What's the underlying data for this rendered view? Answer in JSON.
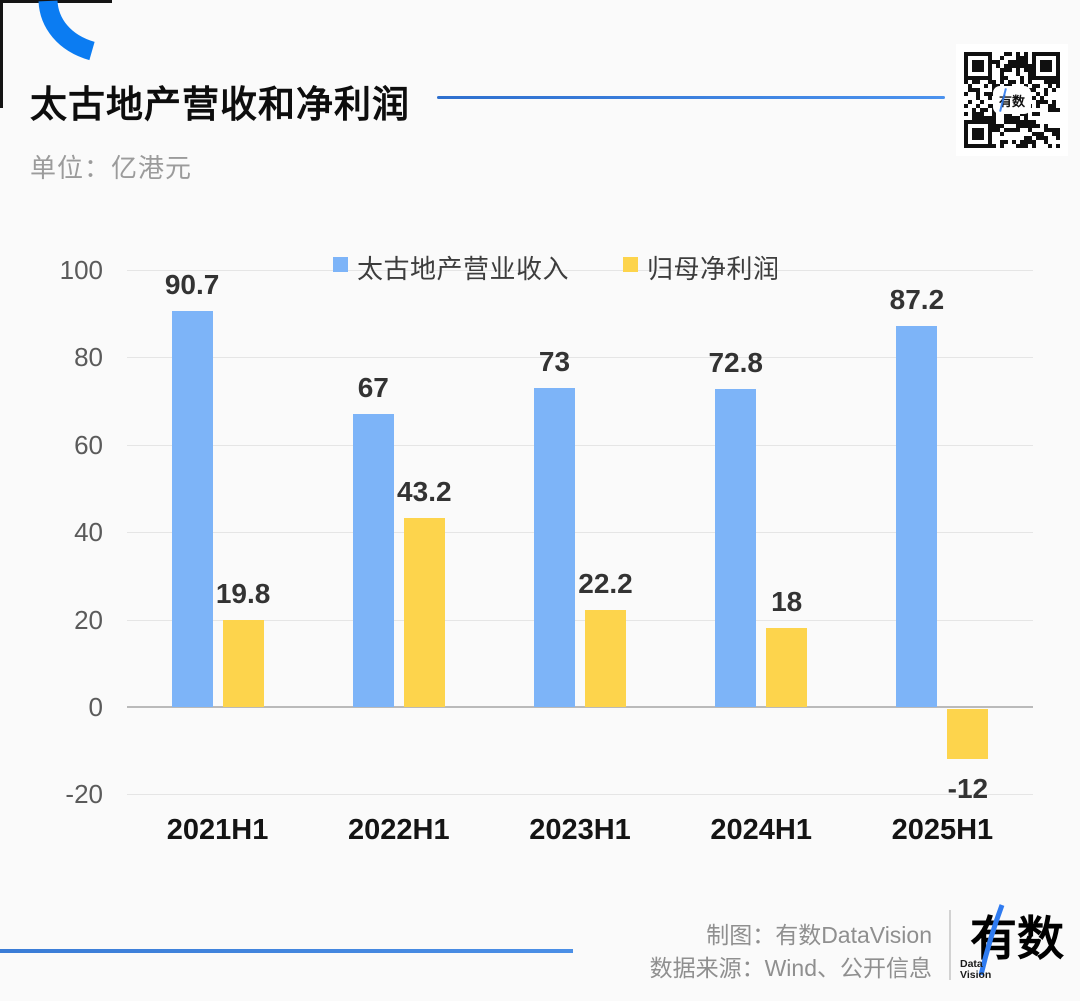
{
  "header": {
    "title": "太古地产营收和净利润",
    "unit_label": "单位：亿港元",
    "accent_color": "#3c7fe0",
    "arc_color": "#0b7cf2"
  },
  "qr": {
    "center_text": "有数"
  },
  "chart_data": {
    "type": "bar",
    "title": "太古地产营收和净利润",
    "unit": "亿港元",
    "categories": [
      "2021H1",
      "2022H1",
      "2023H1",
      "2024H1",
      "2025H1"
    ],
    "series": [
      {
        "name": "太古地产营业收入",
        "color": "#7db4f8",
        "values": [
          90.7,
          67,
          73,
          72.8,
          87.2
        ]
      },
      {
        "name": "归母净利润",
        "color": "#fdd44c",
        "values": [
          19.8,
          43.2,
          22.2,
          18,
          -12
        ]
      }
    ],
    "y_ticks": [
      100,
      80,
      60,
      40,
      20,
      0,
      -20
    ],
    "ylim": [
      -20,
      100
    ],
    "grid": true,
    "legend_position": "top"
  },
  "legend": {
    "item1": "太古地产营业收入",
    "item2": "归母净利润"
  },
  "footer": {
    "maker": "制图：有数DataVision",
    "source": "数据来源：Wind、公开信息",
    "logo_text": "有数",
    "logo_sub_line1": "Data",
    "logo_sub_line2": "Vision"
  }
}
